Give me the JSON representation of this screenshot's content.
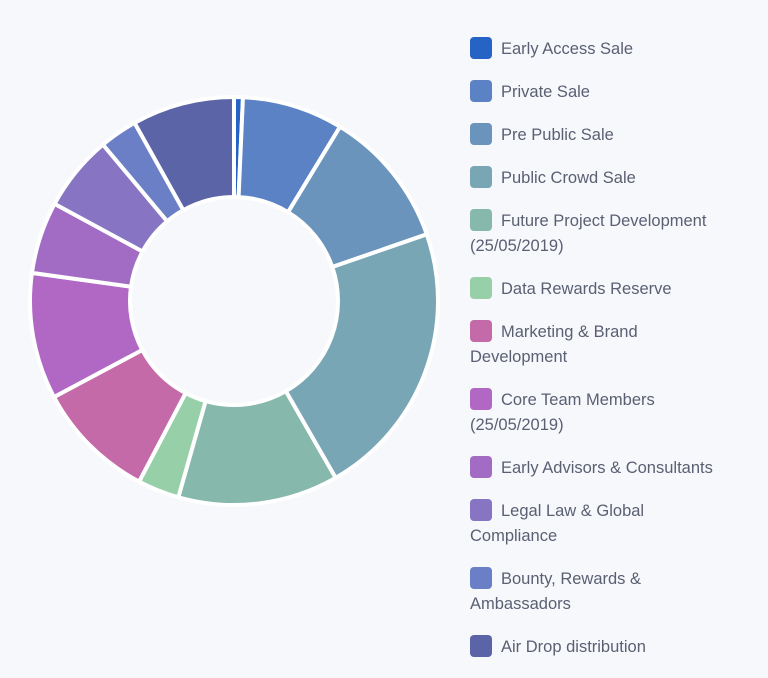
{
  "chart_data": {
    "type": "pie",
    "variant": "donut",
    "title": "",
    "legend_position": "right",
    "categories": [
      "Early Access Sale",
      "Private Sale",
      "Pre Public Sale",
      "Public Crowd Sale",
      "Future Project Development (25/05/2019)",
      "Data Rewards Reserve",
      "Marketing & Brand Development",
      "Core Team Members (25/05/2019)",
      "Early Advisors & Consultants",
      "Legal Law & Global Compliance",
      "Bounty, Rewards & Ambassadors",
      "Air Drop distribution"
    ],
    "values": [
      0.7,
      8,
      11,
      22,
      12.7,
      3.3,
      9.5,
      10,
      5.7,
      6,
      3,
      8.1
    ],
    "colors": [
      "#2563c4",
      "#5a82c4",
      "#6a94bb",
      "#79a6b5",
      "#87b8ac",
      "#97cfa9",
      "#c46aa8",
      "#b068c4",
      "#a36cc4",
      "#8774c2",
      "#6a7fc6",
      "#5a64a6"
    ]
  }
}
